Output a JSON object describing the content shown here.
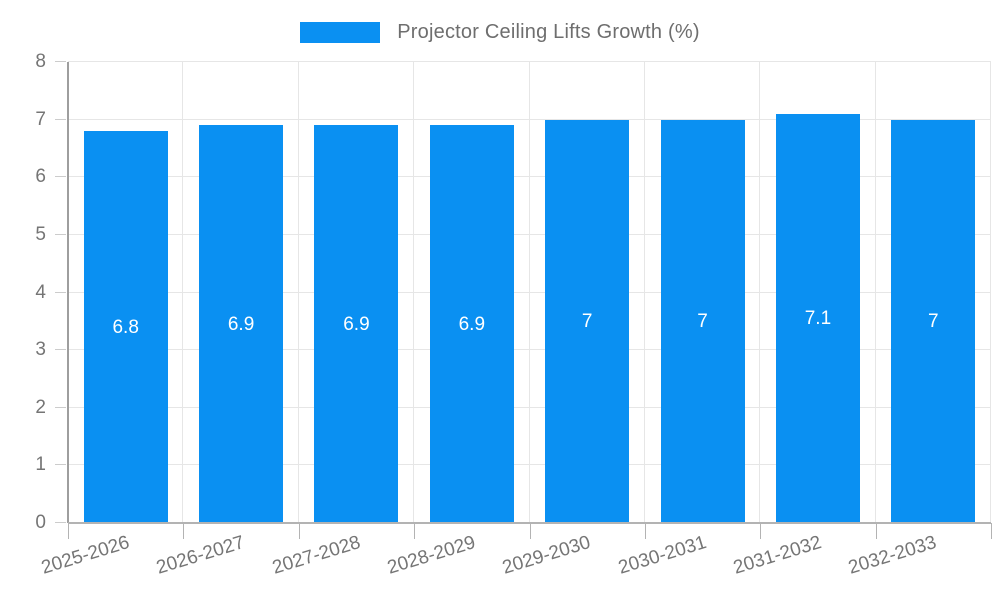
{
  "legend": {
    "label": "Projector Ceiling Lifts Growth (%)"
  },
  "chart_data": {
    "type": "bar",
    "title": "Projector Ceiling Lifts Growth (%)",
    "categories": [
      "2025-2026",
      "2026-2027",
      "2027-2028",
      "2028-2029",
      "2029-2030",
      "2030-2031",
      "2031-2032",
      "2032-2033"
    ],
    "values": [
      6.8,
      6.9,
      6.9,
      6.9,
      7,
      7,
      7.1,
      7
    ],
    "value_labels": [
      "6.8",
      "6.9",
      "6.9",
      "6.9",
      "7",
      "7",
      "7.1",
      "7"
    ],
    "xlabel": "",
    "ylabel": "",
    "ylim": [
      0,
      8
    ],
    "yticks": [
      0,
      1,
      2,
      3,
      4,
      5,
      6,
      7,
      8
    ],
    "grid": true,
    "legend_position": "top-center",
    "colors": {
      "bar": "#0a90f2",
      "grid": "#e6e6e6",
      "axis": "#9e9e9e",
      "baseline": "#b3b3b3",
      "tick": "#b3b3b3",
      "axis_text": "#757575",
      "value_text": "#ffffff",
      "legend_text": "#6e6e6e",
      "background": "#ffffff"
    }
  }
}
